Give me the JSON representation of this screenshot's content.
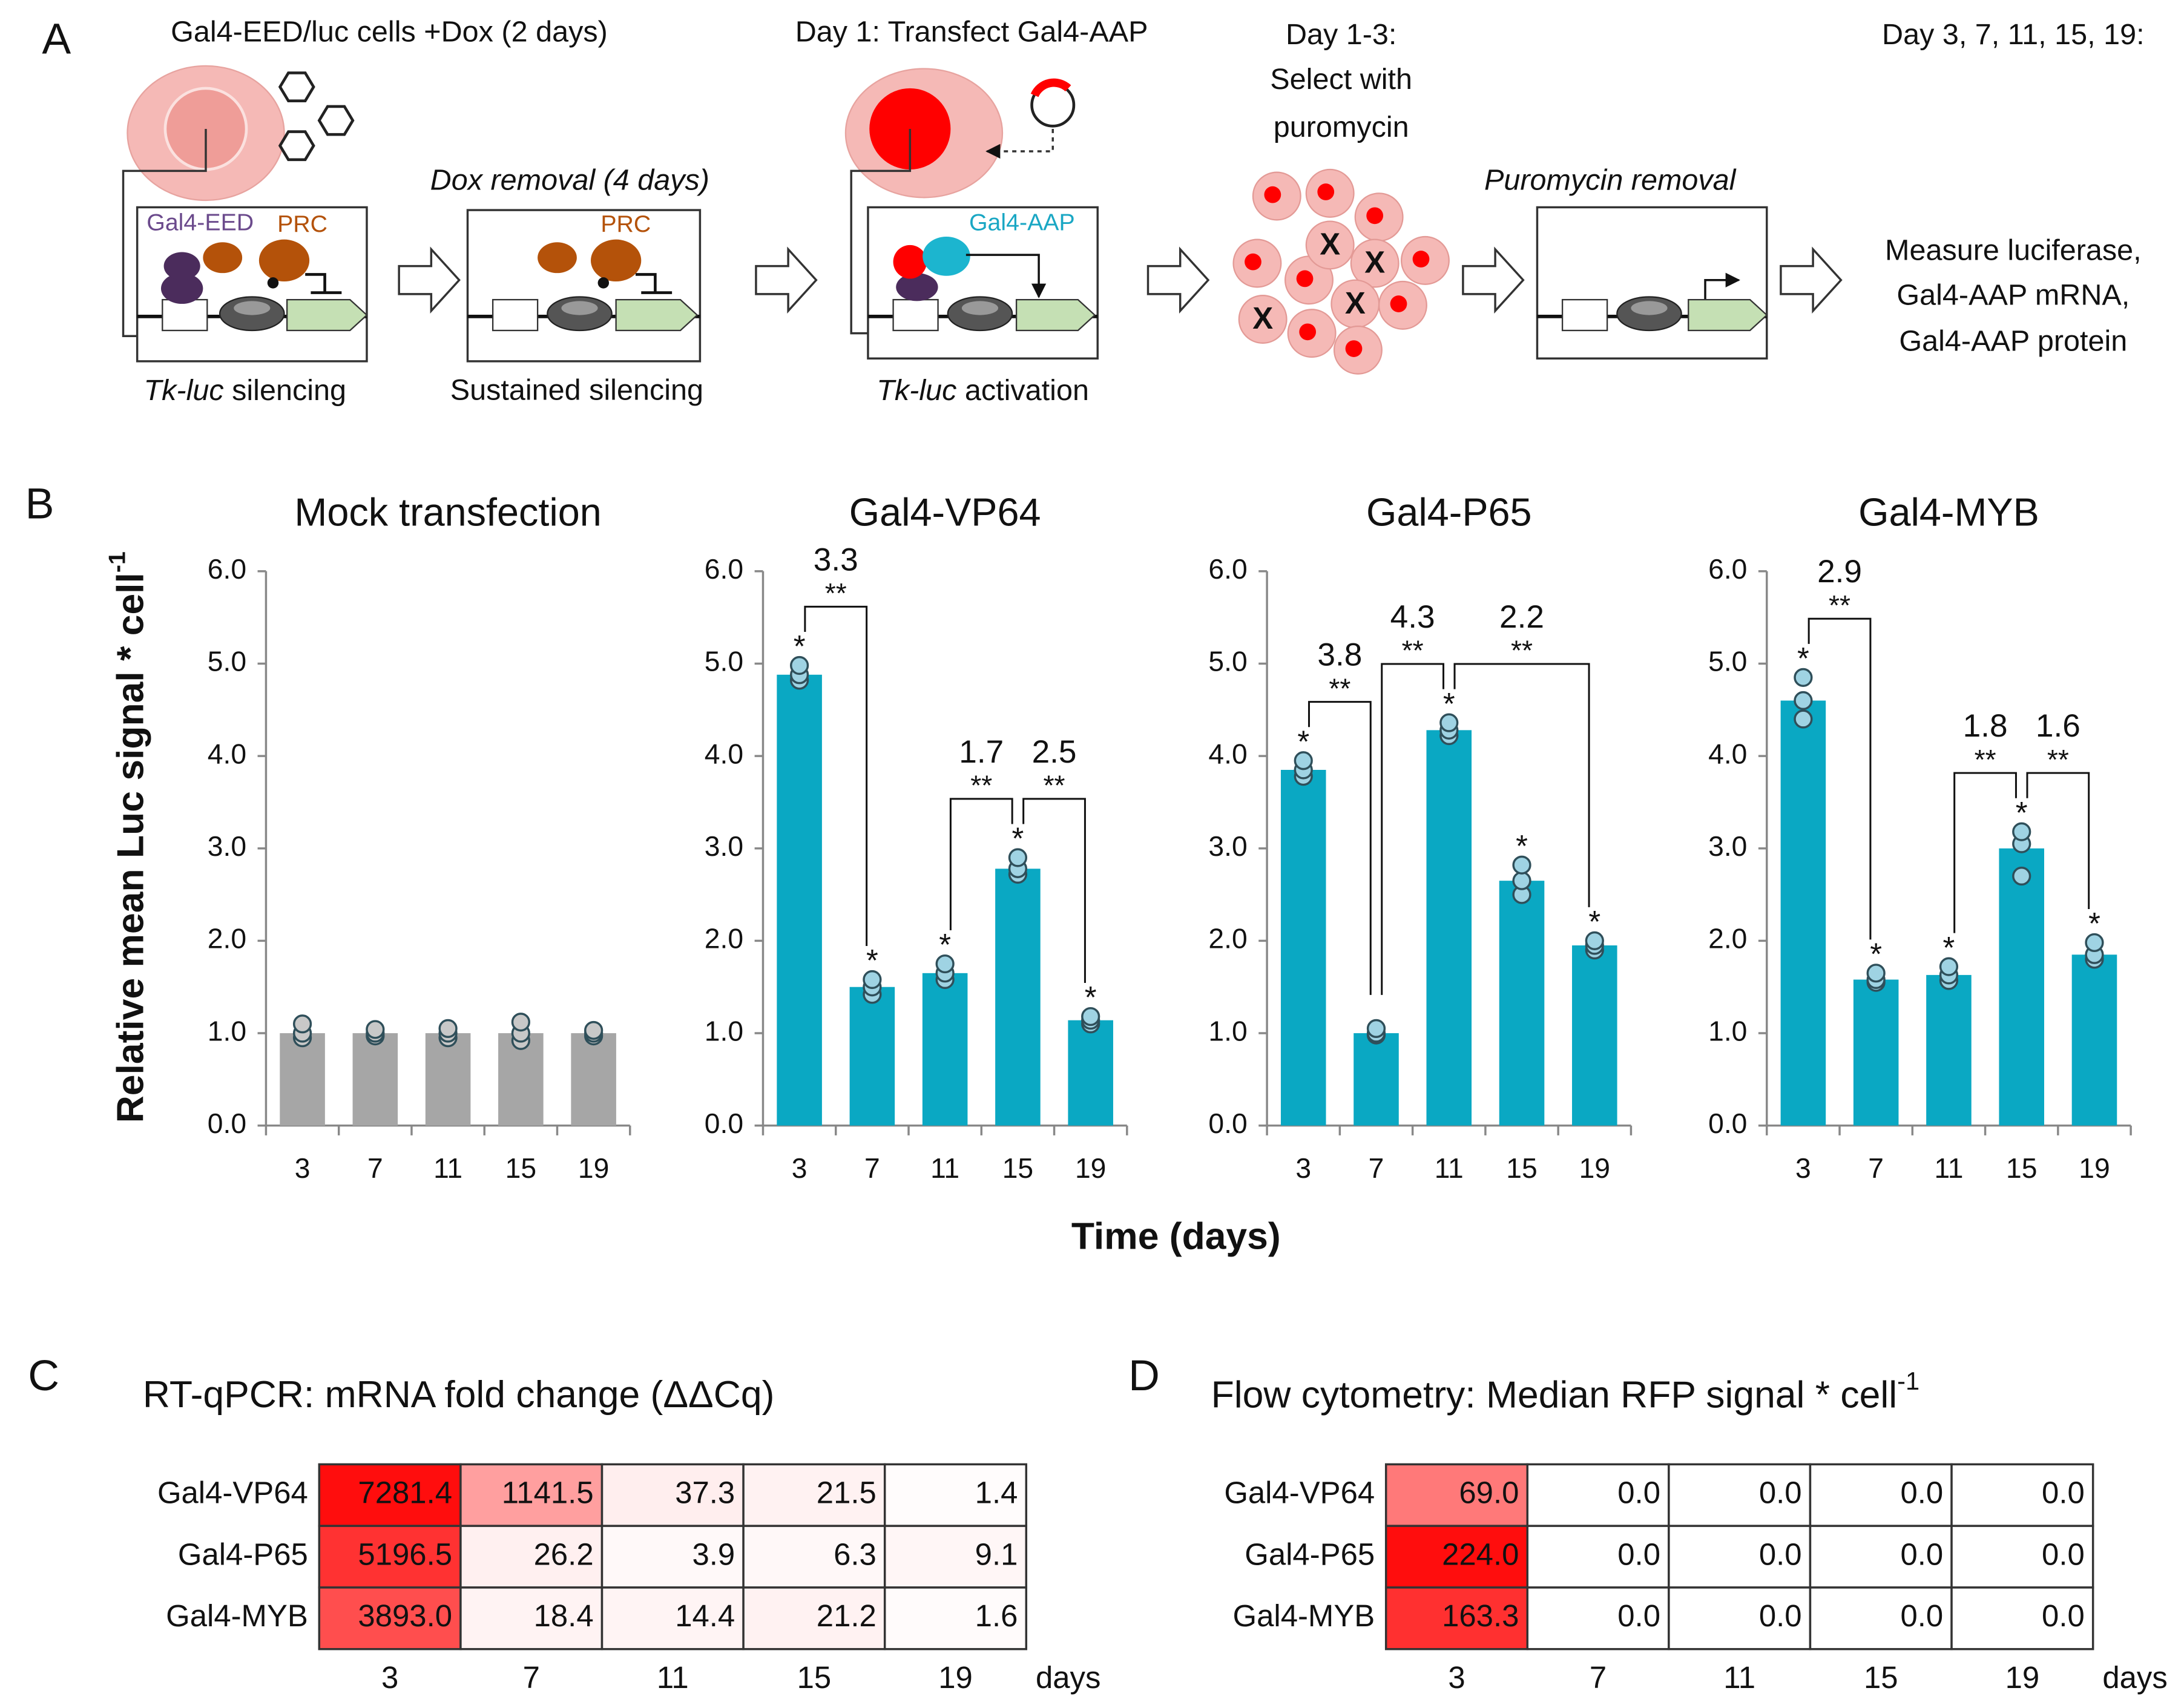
{
  "panel_labels": [
    "A",
    "B",
    "C",
    "D"
  ],
  "panel_a": {
    "title_1": "Gal4-EED/luc cells +Dox (2 days)",
    "label_eed": "Gal4-EED",
    "label_prc_1": "PRC",
    "caption_1": {
      "italic": "Tk-luc",
      "text": " silencing"
    },
    "step_2": "Dox removal (4 days)",
    "label_prc_2": "PRC",
    "caption_2": "Sustained silencing",
    "title_3": "Day 1: Transfect Gal4-AAP",
    "label_aap": "Gal4-AAP",
    "caption_3": {
      "italic": "Tk-luc",
      "text": " activation"
    },
    "title_4": [
      "Day 1-3:",
      "Select with",
      "puromycin"
    ],
    "dead_cell_mark": "X",
    "step_5": "Puromycin removal",
    "title_6": [
      "Day 3, 7, 11, 15, 19:",
      "Measure luciferase,",
      "Gal4-AAP mRNA,",
      "Gal4-AAP protein"
    ]
  },
  "panel_b": {
    "y_label": {
      "text": "Relative mean Luc signal * cell",
      "superscript": "-1"
    },
    "x_label": "Time (days)"
  },
  "chart_data": [
    {
      "type": "bar",
      "title": "Mock transfection",
      "categories": [
        "3",
        "7",
        "11",
        "15",
        "19"
      ],
      "values": [
        1.0,
        1.0,
        1.0,
        1.0,
        1.0
      ],
      "points": [
        [
          0.95,
          1.0,
          1.1
        ],
        [
          0.97,
          1.0,
          1.04
        ],
        [
          0.95,
          1.0,
          1.05
        ],
        [
          0.92,
          1.0,
          1.12
        ],
        [
          0.97,
          1.0,
          1.03
        ]
      ],
      "color": "#a6a6a6",
      "point_color": "#c8c8c8",
      "ylim": [
        0,
        6
      ],
      "yticks": [
        {
          "value": 0,
          "label": "0.0"
        },
        {
          "value": 1,
          "label": "1.0"
        },
        {
          "value": 2,
          "label": "2.0"
        },
        {
          "value": 3,
          "label": "3.0"
        },
        {
          "value": 4,
          "label": "4.0"
        },
        {
          "value": 5,
          "label": "5.0"
        },
        {
          "value": 6,
          "label": "6.0"
        }
      ]
    },
    {
      "type": "bar",
      "title": "Gal4-VP64",
      "categories": [
        "3",
        "7",
        "11",
        "15",
        "19"
      ],
      "values": [
        4.88,
        1.5,
        1.65,
        2.78,
        1.14
      ],
      "points": [
        [
          4.82,
          4.88,
          4.98
        ],
        [
          1.42,
          1.5,
          1.58
        ],
        [
          1.58,
          1.65,
          1.75
        ],
        [
          2.72,
          2.78,
          2.9
        ],
        [
          1.1,
          1.14,
          1.18
        ]
      ],
      "color": "#0aa8c3",
      "point_color": "#9fd3e3",
      "bar_labels": [
        "*",
        "*",
        "*",
        "*",
        "*"
      ],
      "annotations": [
        {
          "from": "3",
          "to": "7",
          "label": "3.3",
          "stars": "**"
        },
        {
          "from": "11",
          "to": "15",
          "label": "1.7",
          "stars": "**"
        },
        {
          "from": "15",
          "to": "19",
          "label": "2.5",
          "stars": "**"
        }
      ],
      "ylim": [
        0,
        6
      ],
      "yticks": [
        {
          "value": 0,
          "label": "0.0"
        },
        {
          "value": 1,
          "label": "1.0"
        },
        {
          "value": 2,
          "label": "2.0"
        },
        {
          "value": 3,
          "label": "3.0"
        },
        {
          "value": 4,
          "label": "4.0"
        },
        {
          "value": 5,
          "label": "5.0"
        },
        {
          "value": 6,
          "label": "6.0"
        }
      ]
    },
    {
      "type": "bar",
      "title": "Gal4-P65",
      "categories": [
        "3",
        "7",
        "11",
        "15",
        "19"
      ],
      "values": [
        3.85,
        1.0,
        4.28,
        2.65,
        1.95
      ],
      "points": [
        [
          3.78,
          3.85,
          3.95
        ],
        [
          0.98,
          1.0,
          1.05
        ],
        [
          4.22,
          4.28,
          4.36
        ],
        [
          2.5,
          2.65,
          2.82
        ],
        [
          1.9,
          1.95,
          2.0
        ]
      ],
      "color": "#0aa8c3",
      "point_color": "#9fd3e3",
      "bar_labels": [
        "*",
        null,
        "*",
        "*",
        "*"
      ],
      "annotations": [
        {
          "from": "3",
          "to": "7",
          "label": "3.8",
          "stars": "**"
        },
        {
          "from": "7",
          "to": "11",
          "label": "4.3",
          "stars": "**"
        },
        {
          "from": "11",
          "to": "19",
          "label": "2.2",
          "stars": "**"
        }
      ],
      "ylim": [
        0,
        6
      ],
      "yticks": [
        {
          "value": 0,
          "label": "0.0"
        },
        {
          "value": 1,
          "label": "1.0"
        },
        {
          "value": 2,
          "label": "2.0"
        },
        {
          "value": 3,
          "label": "3.0"
        },
        {
          "value": 4,
          "label": "4.0"
        },
        {
          "value": 5,
          "label": "5.0"
        },
        {
          "value": 6,
          "label": "6.0"
        }
      ]
    },
    {
      "type": "bar",
      "title": "Gal4-MYB",
      "categories": [
        "3",
        "7",
        "11",
        "15",
        "19"
      ],
      "values": [
        4.6,
        1.58,
        1.63,
        3.0,
        1.85
      ],
      "points": [
        [
          4.4,
          4.6,
          4.85
        ],
        [
          1.55,
          1.58,
          1.65
        ],
        [
          1.57,
          1.63,
          1.72
        ],
        [
          2.7,
          3.05,
          3.18
        ],
        [
          1.8,
          1.85,
          1.98
        ]
      ],
      "color": "#0aa8c3",
      "point_color": "#9fd3e3",
      "bar_labels": [
        "*",
        "*",
        "*",
        "*",
        "*"
      ],
      "annotations": [
        {
          "from": "3",
          "to": "7",
          "label": "2.9",
          "stars": "**"
        },
        {
          "from": "11",
          "to": "15",
          "label": "1.8",
          "stars": "**"
        },
        {
          "from": "15",
          "to": "19",
          "label": "1.6",
          "stars": "**"
        }
      ],
      "ylim": [
        0,
        6
      ],
      "yticks": [
        {
          "value": 0,
          "label": "0.0"
        },
        {
          "value": 1,
          "label": "1.0"
        },
        {
          "value": 2,
          "label": "2.0"
        },
        {
          "value": 3,
          "label": "3.0"
        },
        {
          "value": 4,
          "label": "4.0"
        },
        {
          "value": 5,
          "label": "5.0"
        },
        {
          "value": 6,
          "label": "6.0"
        }
      ]
    }
  ],
  "panel_c": {
    "title": "RT-qPCR: mRNA fold change (ΔΔCq)",
    "rows": [
      "Gal4-VP64",
      "Gal4-P65",
      "Gal4-MYB"
    ],
    "columns": [
      "3",
      "7",
      "11",
      "15",
      "19"
    ],
    "unit": "days",
    "values": [
      [
        7281.4,
        1141.5,
        37.3,
        21.5,
        1.4
      ],
      [
        5196.5,
        26.2,
        3.9,
        6.3,
        9.1
      ],
      [
        3893.0,
        18.4,
        14.4,
        21.2,
        1.6
      ]
    ],
    "value_labels": [
      [
        "7281.4",
        "1141.5",
        "37.3",
        "21.5",
        "1.4"
      ],
      [
        "5196.5",
        "26.2",
        "3.9",
        "6.3",
        "9.1"
      ],
      [
        "3893.0",
        "18.4",
        "14.4",
        "21.2",
        "1.6"
      ]
    ]
  },
  "panel_d": {
    "title": {
      "text": "Flow cytometry: Median RFP signal * cell",
      "superscript": "-1"
    },
    "rows": [
      "Gal4-VP64",
      "Gal4-P65",
      "Gal4-MYB"
    ],
    "columns": [
      "3",
      "7",
      "11",
      "15",
      "19"
    ],
    "unit": "days",
    "values": [
      [
        69.0,
        0.0,
        0.0,
        0.0,
        0.0
      ],
      [
        224.0,
        0.0,
        0.0,
        0.0,
        0.0
      ],
      [
        163.3,
        0.0,
        0.0,
        0.0,
        0.0
      ]
    ],
    "value_labels": [
      [
        "69.0",
        "0.0",
        "0.0",
        "0.0",
        "0.0"
      ],
      [
        "224.0",
        "0.0",
        "0.0",
        "0.0",
        "0.0"
      ],
      [
        "163.3",
        "0.0",
        "0.0",
        "0.0",
        "0.0"
      ]
    ]
  }
}
